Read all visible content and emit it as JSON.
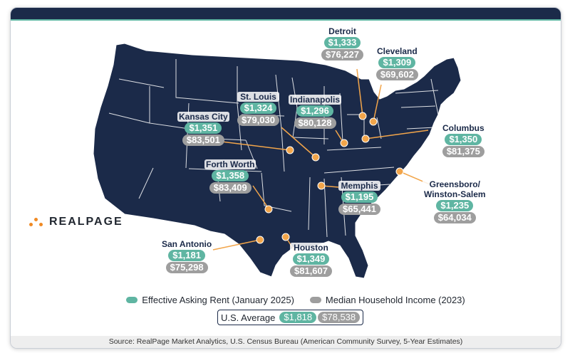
{
  "brand": {
    "logo_text": "REALPAGE",
    "colors": {
      "navy": "#1b2a49",
      "teal": "#5fb5a2",
      "gray": "#9e9e9e",
      "orange": "#f2a54a"
    }
  },
  "cities": [
    {
      "name": "Detroit",
      "rent": "$1,333",
      "income": "$76,227"
    },
    {
      "name": "Cleveland",
      "rent": "$1,309",
      "income": "$69,602"
    },
    {
      "name": "St. Louis",
      "rent": "$1,324",
      "income": "$79,030"
    },
    {
      "name": "Indianapolis",
      "rent": "$1,296",
      "income": "$80,128"
    },
    {
      "name": "Kansas City",
      "rent": "$1,351",
      "income": "$83,501"
    },
    {
      "name": "Columbus",
      "rent": "$1,350",
      "income": "$81,375"
    },
    {
      "name": "Forth Worth",
      "rent": "$1,358",
      "income": "$83,409"
    },
    {
      "name": "Greensboro/\nWinston-Salem",
      "rent": "$1,235",
      "income": "$64,034"
    },
    {
      "name": "Memphis",
      "rent": "$1,195",
      "income": "$65,441"
    },
    {
      "name": "San Antonio",
      "rent": "$1,181",
      "income": "$75,298"
    },
    {
      "name": "Houston",
      "rent": "$1,349",
      "income": "$81,607"
    }
  ],
  "legend": {
    "rent_label": "Effective Asking Rent (January 2025)",
    "income_label": "Median Household Income (2023)"
  },
  "us_average": {
    "label": "U.S. Average",
    "rent": "$1,818",
    "income": "$78,538"
  },
  "source": "Source: RealPage Market Analytics, U.S. Census Bureau (American Community Survey, 5-Year Estimates)"
}
